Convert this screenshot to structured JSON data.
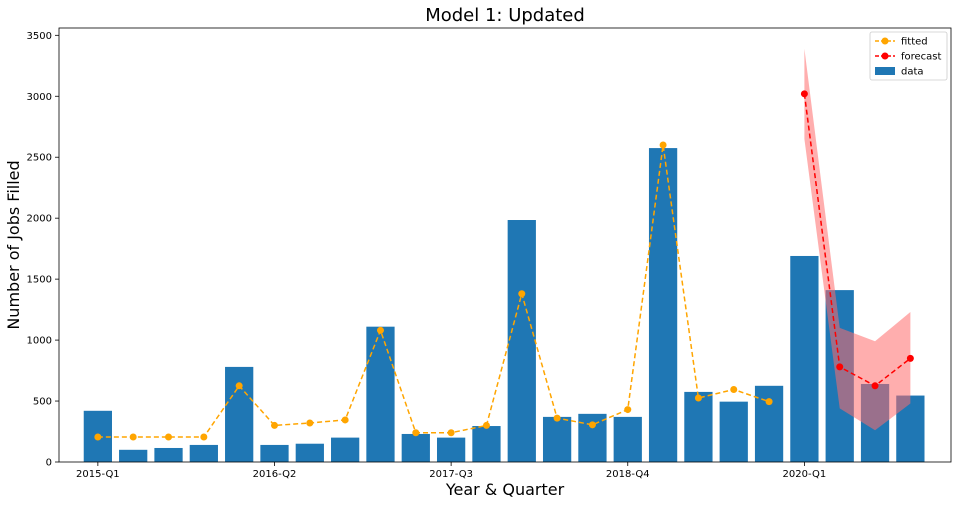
{
  "chart_data": {
    "type": "bar",
    "title": "Model 1: Updated",
    "xlabel": "Year & Quarter",
    "ylabel": "Number of Jobs Filled",
    "ylim": [
      0,
      3560
    ],
    "yticks": [
      0,
      500,
      1000,
      1500,
      2000,
      2500,
      3000,
      3500
    ],
    "xtick_labels": [
      {
        "index": 0,
        "label": "2015-Q1"
      },
      {
        "index": 5,
        "label": "2016-Q2"
      },
      {
        "index": 10,
        "label": "2017-Q3"
      },
      {
        "index": 15,
        "label": "2018-Q4"
      },
      {
        "index": 20,
        "label": "2020-Q1"
      }
    ],
    "grid": false,
    "legend_position": "top-right",
    "colors": {
      "data": "#1f77b4",
      "fitted": "#ffa500",
      "forecast": "#ff0000",
      "band": "#ff6b6b"
    },
    "legend": [
      {
        "key": "fitted",
        "label": "fitted"
      },
      {
        "key": "forecast",
        "label": "forecast"
      },
      {
        "key": "data",
        "label": "data"
      }
    ],
    "data_series": {
      "name": "data",
      "values": [
        420,
        100,
        115,
        140,
        780,
        140,
        150,
        200,
        1110,
        230,
        200,
        295,
        1985,
        370,
        395,
        370,
        2575,
        575,
        495,
        625,
        1690,
        1410,
        640,
        545
      ]
    },
    "fitted_series": {
      "name": "fitted",
      "x_index": [
        0,
        1,
        2,
        3,
        4,
        5,
        6,
        7,
        8,
        9,
        10,
        11,
        12,
        13,
        14,
        15,
        16,
        17,
        18,
        19
      ],
      "values": [
        205,
        205,
        205,
        205,
        625,
        300,
        320,
        345,
        1080,
        240,
        240,
        300,
        1380,
        360,
        305,
        430,
        2600,
        525,
        595,
        495
      ]
    },
    "forecast_series": {
      "name": "forecast",
      "x_index": [
        20,
        21,
        22,
        23
      ],
      "values": [
        3020,
        780,
        625,
        850
      ],
      "lower": [
        2650,
        440,
        260,
        480
      ],
      "upper": [
        3390,
        1100,
        990,
        1230
      ]
    }
  }
}
